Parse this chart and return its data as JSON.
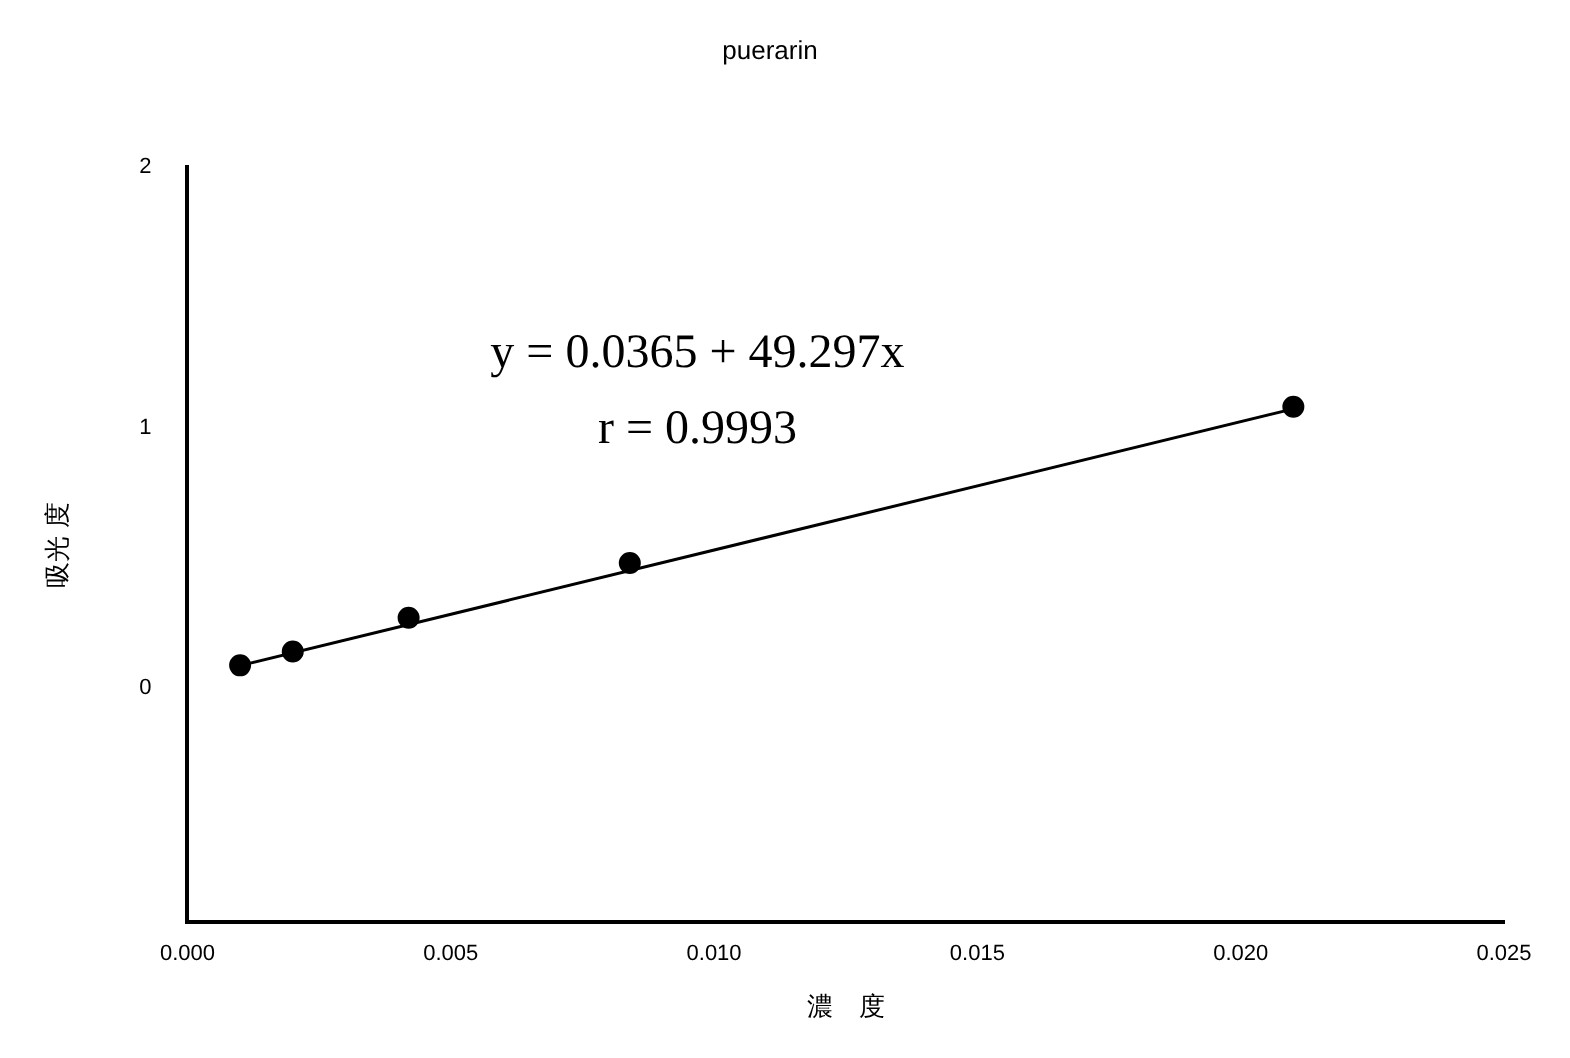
{
  "chart_data": {
    "type": "scatter",
    "title": "puerarin",
    "xlabel": "濃　度",
    "ylabel": "吸光 度",
    "series": [
      {
        "color": "#000000",
        "marker": "circle",
        "x": [
          0.001,
          0.002,
          0.0042,
          0.0084,
          0.021
        ],
        "values": [
          0.087,
          0.14,
          0.27,
          0.48,
          1.08
        ]
      },
      {
        "type": "line",
        "color": "#000000",
        "marker": "none",
        "x": [
          0.001,
          0.021
        ],
        "values": [
          0.086,
          1.072
        ]
      }
    ],
    "annotations": [
      "y = 0.0365 + 49.297x",
      "r = 0.9993"
    ],
    "xlim": [
      0,
      0.025
    ],
    "xticks": [
      {
        "value": 0,
        "label": "0.000"
      },
      {
        "value": 0.005,
        "label": "0.005"
      },
      {
        "value": 0.01,
        "label": "0.010"
      },
      {
        "value": 0.015,
        "label": "0.015"
      },
      {
        "value": 0.02,
        "label": "0.020"
      },
      {
        "value": 0.025,
        "label": "0.025"
      }
    ],
    "ylim": [
      -0.9,
      2
    ],
    "yticks": [
      0,
      1,
      2
    ],
    "grid": false,
    "legend": false
  }
}
